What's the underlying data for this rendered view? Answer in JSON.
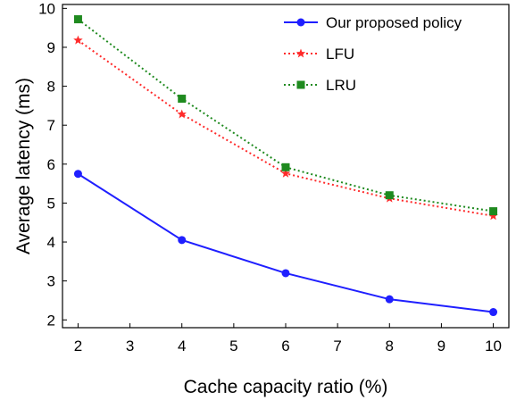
{
  "chart_data": {
    "type": "line",
    "title": "",
    "xlabel": "Cache capacity ratio (%)",
    "ylabel": "Average latency (ms)",
    "xlim": [
      1.7,
      10.3
    ],
    "ylim": [
      1.8,
      10.1
    ],
    "xticks": [
      2,
      3,
      4,
      5,
      6,
      7,
      8,
      9,
      10
    ],
    "yticks": [
      2,
      3,
      4,
      5,
      6,
      7,
      8,
      9,
      10
    ],
    "grid": false,
    "legend_position": "top-right",
    "x": [
      2,
      4,
      6,
      8,
      10
    ],
    "series": [
      {
        "name": "Our proposed policy",
        "values": [
          5.75,
          4.05,
          3.2,
          2.53,
          2.2
        ],
        "color": "#1f1fff",
        "line": "solid",
        "marker": "circle"
      },
      {
        "name": "LFU",
        "values": [
          9.18,
          7.28,
          5.76,
          5.12,
          4.67
        ],
        "color": "#ff2a2a",
        "line": "dotted",
        "marker": "star"
      },
      {
        "name": "LRU",
        "values": [
          9.72,
          7.68,
          5.92,
          5.2,
          4.79
        ],
        "color": "#1f8a1f",
        "line": "dotted",
        "marker": "square"
      }
    ]
  }
}
